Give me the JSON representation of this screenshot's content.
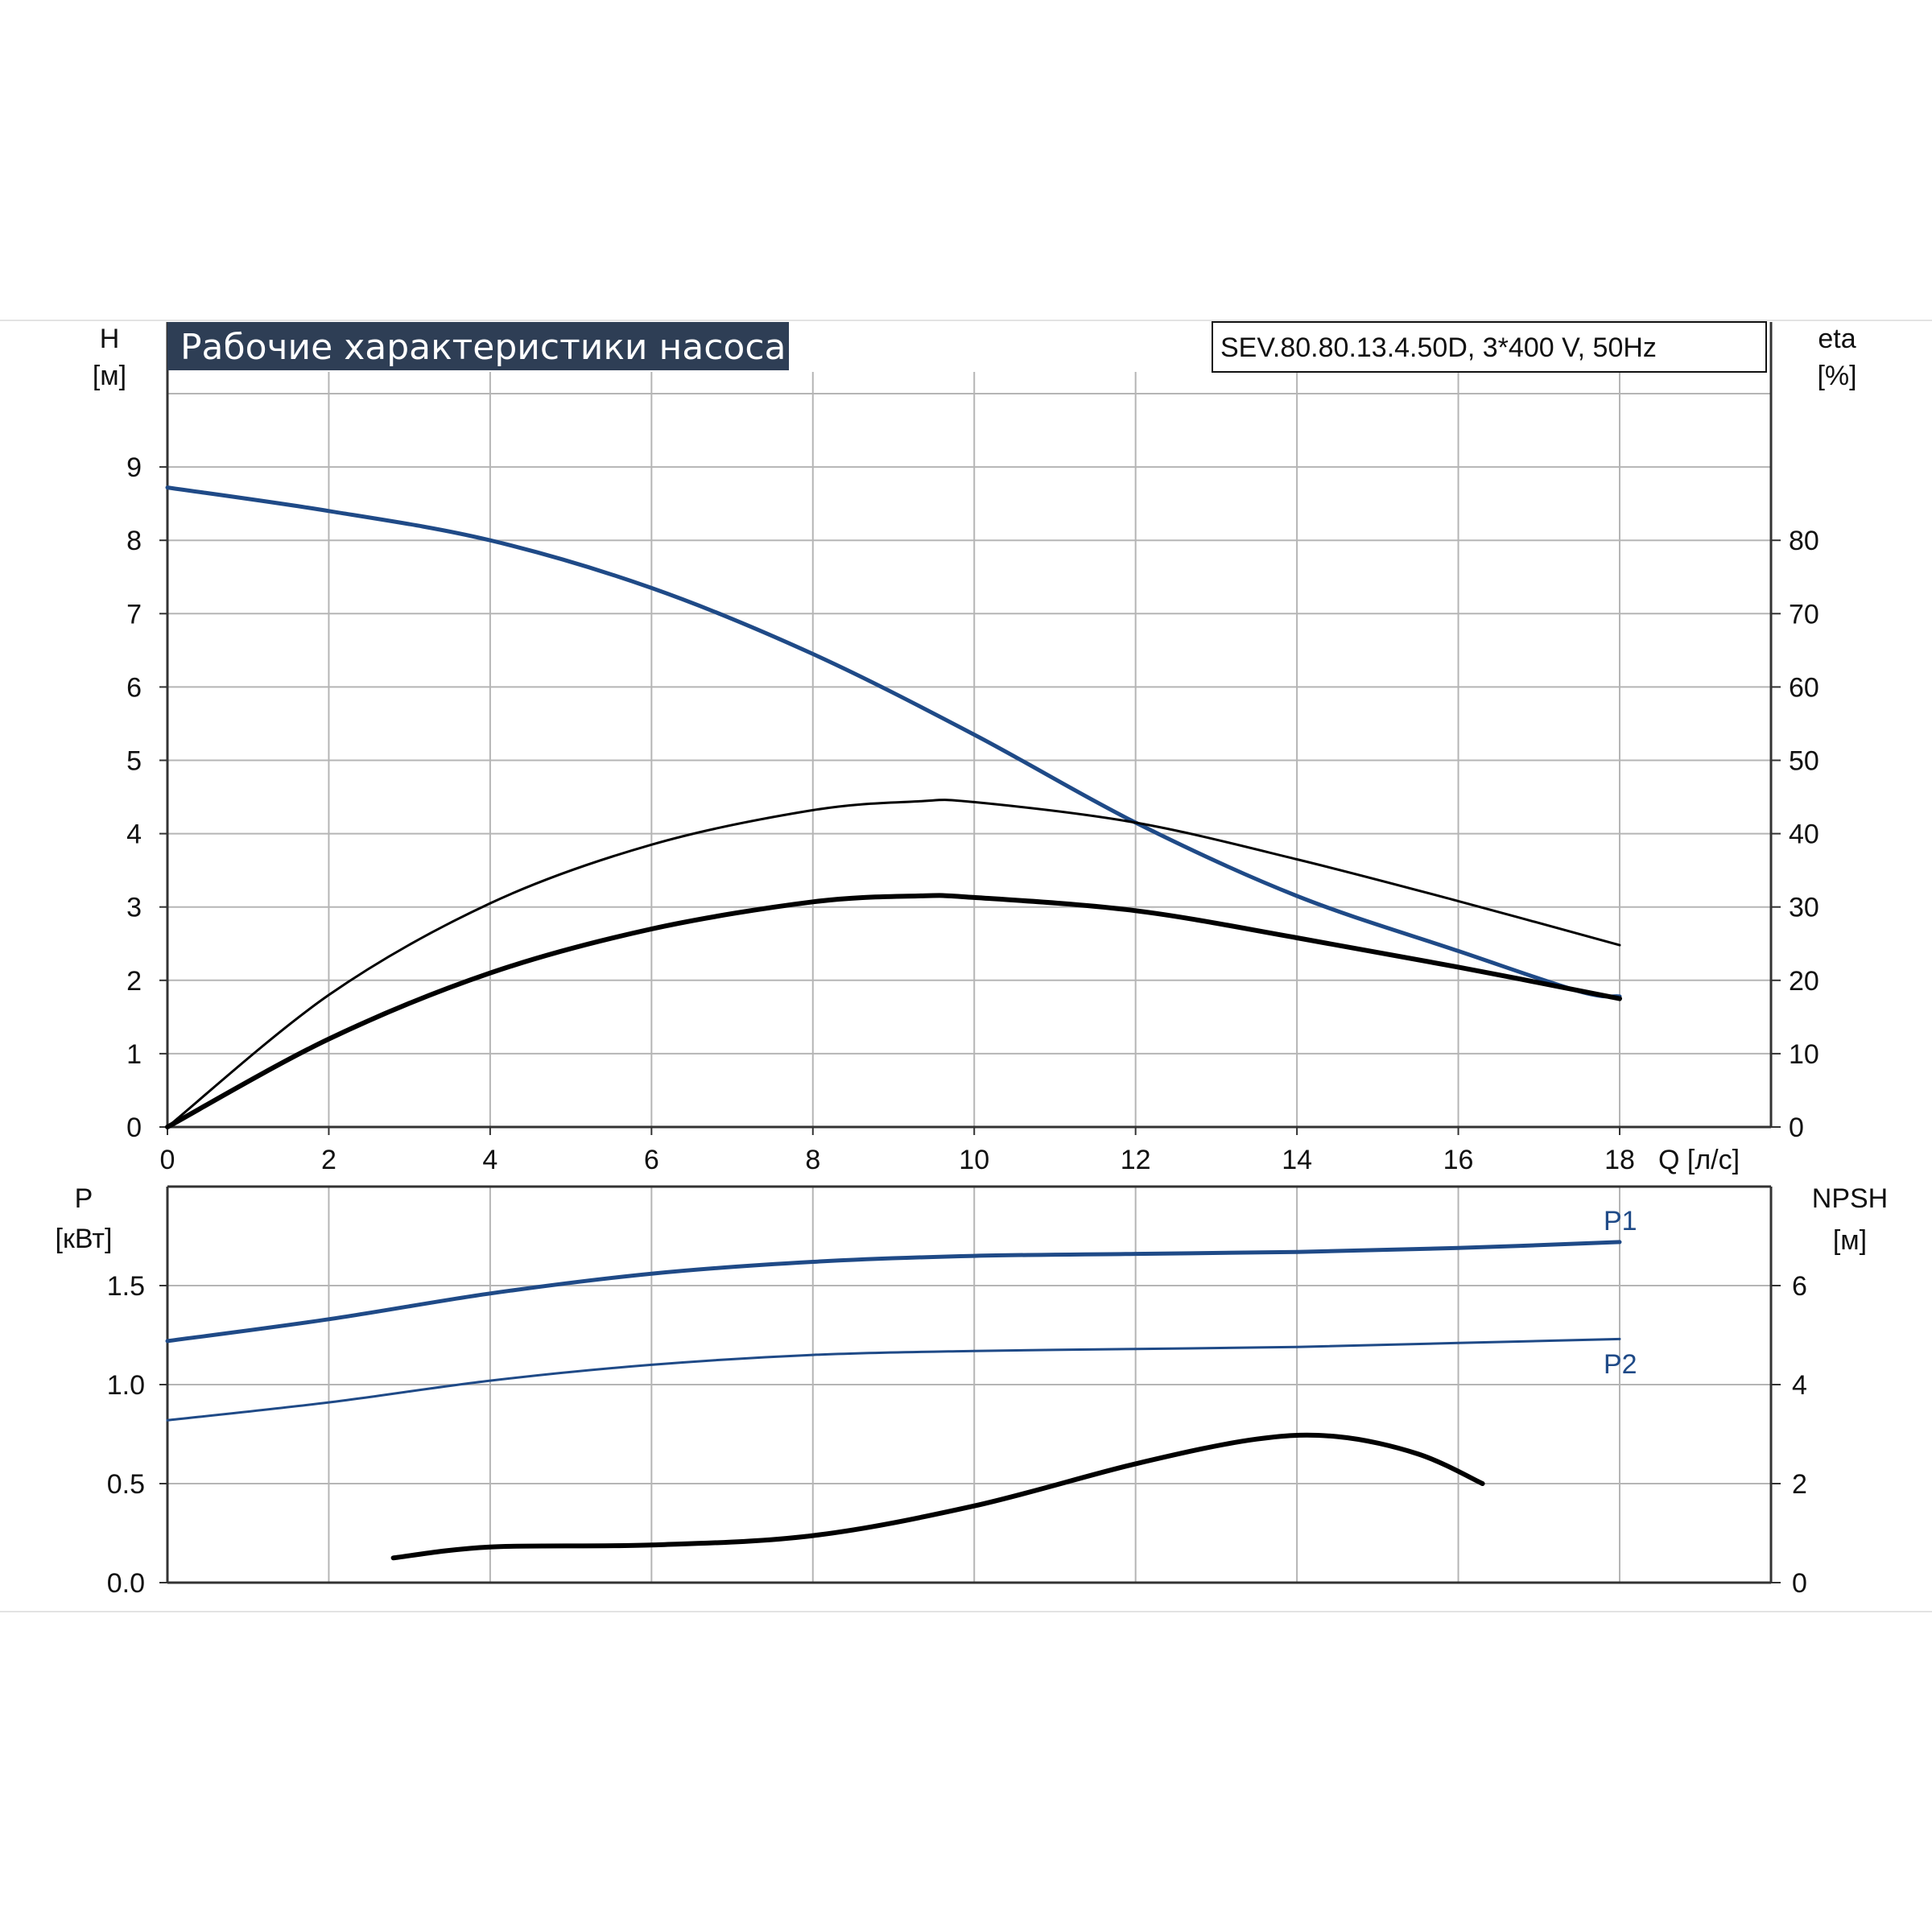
{
  "title": "Рабочие характеристики насоса",
  "model": "SEV.80.80.13.4.50D, 3*400 V, 50Hz",
  "colors": {
    "blue": "#1f4a87",
    "black": "#000000",
    "grid": "#b5b5b5",
    "title_bg": "#2e3e55"
  },
  "chart_data": [
    {
      "type": "line",
      "x_axis": {
        "label": "Q [л/с]",
        "ticks": [
          "0",
          "2",
          "4",
          "6",
          "8",
          "10",
          "12",
          "14",
          "16",
          "18"
        ],
        "range": [
          0,
          18
        ]
      },
      "y_left": {
        "label_line1": "H",
        "label_line2": "[м]",
        "ticks": [
          "0",
          "1",
          "2",
          "3",
          "4",
          "5",
          "6",
          "7",
          "8",
          "9"
        ],
        "range": [
          0,
          10
        ]
      },
      "y_right": {
        "label_line1": "eta",
        "label_line2": "[%]",
        "ticks": [
          "0",
          "10",
          "20",
          "30",
          "40",
          "50",
          "60",
          "70",
          "80"
        ],
        "range": [
          0,
          100
        ]
      },
      "grid": true,
      "series": [
        {
          "axis": "left",
          "color": "#1f4a87",
          "points": [
            [
              0,
              8.72
            ],
            [
              2,
              8.4
            ],
            [
              4,
              8.0
            ],
            [
              6,
              7.35
            ],
            [
              8,
              6.45
            ],
            [
              10,
              5.35
            ],
            [
              12,
              4.15
            ],
            [
              14,
              3.15
            ],
            [
              16,
              2.4
            ],
            [
              17.5,
              1.85
            ],
            [
              18,
              1.78
            ]
          ]
        },
        {
          "axis": "right",
          "color": "#000000",
          "points": [
            [
              0,
              0
            ],
            [
              2,
              18
            ],
            [
              4,
              30.5
            ],
            [
              6,
              38.5
            ],
            [
              8,
              43.2
            ],
            [
              9.3,
              44.4
            ],
            [
              10,
              44.3
            ],
            [
              12,
              41.5
            ],
            [
              14,
              36.5
            ],
            [
              16,
              30.8
            ],
            [
              18,
              24.8
            ]
          ]
        },
        {
          "axis": "right",
          "color": "#000000",
          "points": [
            [
              0,
              0
            ],
            [
              2,
              12
            ],
            [
              4,
              21
            ],
            [
              6,
              27
            ],
            [
              8,
              30.7
            ],
            [
              9.3,
              31.5
            ],
            [
              10,
              31.3
            ],
            [
              12,
              29.5
            ],
            [
              14,
              25.8
            ],
            [
              16,
              21.8
            ],
            [
              18,
              17.5
            ]
          ]
        }
      ]
    },
    {
      "type": "line",
      "y_left": {
        "label_line1": "P",
        "label_line2": "[кВт]",
        "ticks": [
          "0.0",
          "0.5",
          "1.0",
          "1.5"
        ],
        "range": [
          0,
          2.0
        ]
      },
      "y_right": {
        "label_line1": "NPSH",
        "label_line2": "[м]",
        "ticks": [
          "0",
          "2",
          "4",
          "6"
        ],
        "range": [
          0,
          8
        ]
      },
      "grid": true,
      "series": [
        {
          "name": "P1",
          "axis": "left",
          "color": "#1f4a87",
          "points": [
            [
              0,
              1.22
            ],
            [
              2,
              1.33
            ],
            [
              4,
              1.46
            ],
            [
              6,
              1.56
            ],
            [
              8,
              1.62
            ],
            [
              10,
              1.65
            ],
            [
              12,
              1.66
            ],
            [
              14,
              1.67
            ],
            [
              16,
              1.69
            ],
            [
              18,
              1.72
            ]
          ]
        },
        {
          "name": "P2",
          "axis": "left",
          "color": "#1f4a87",
          "points": [
            [
              0,
              0.82
            ],
            [
              2,
              0.91
            ],
            [
              4,
              1.02
            ],
            [
              6,
              1.1
            ],
            [
              8,
              1.15
            ],
            [
              10,
              1.17
            ],
            [
              12,
              1.18
            ],
            [
              14,
              1.19
            ],
            [
              16,
              1.21
            ],
            [
              18,
              1.23
            ]
          ]
        },
        {
          "axis": "right",
          "color": "#000000",
          "points": [
            [
              2.8,
              0.5
            ],
            [
              4,
              0.72
            ],
            [
              6,
              0.76
            ],
            [
              8,
              0.95
            ],
            [
              10,
              1.55
            ],
            [
              12,
              2.4
            ],
            [
              13.5,
              2.9
            ],
            [
              14.5,
              2.95
            ],
            [
              15.5,
              2.6
            ],
            [
              16.3,
              2.0
            ]
          ]
        }
      ]
    }
  ]
}
